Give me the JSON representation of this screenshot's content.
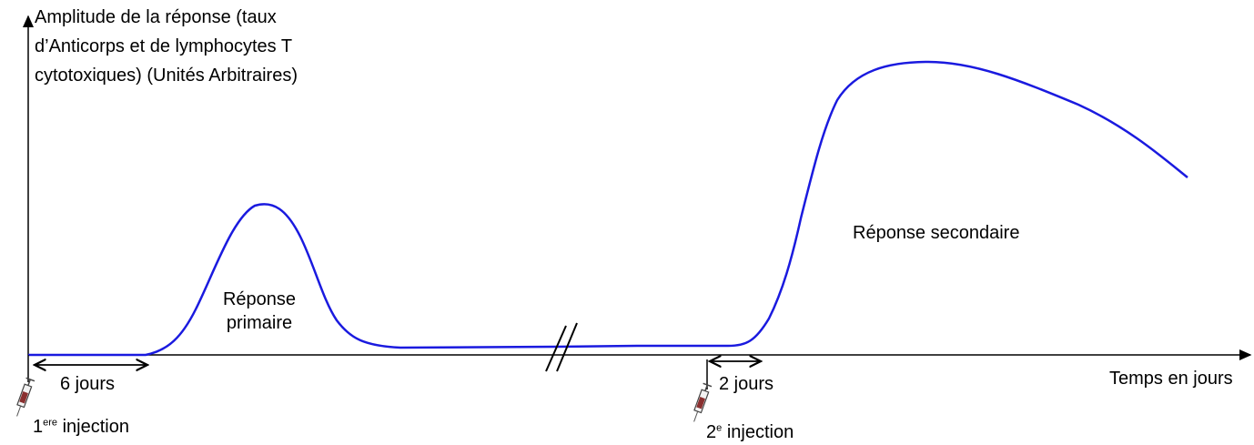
{
  "diagram": {
    "y_axis_label": "Amplitude de la réponse (taux d’Anticorps et de lymphocytes T cytotoxiques) (Unités Arbitraires)",
    "x_axis_label": "Temps en jours",
    "primary_response_label_line1": "Réponse",
    "primary_response_label_line2": "primaire",
    "secondary_response_label": "Réponse secondaire",
    "interval_first": "6 jours",
    "interval_second": "2 jours",
    "injection1": {
      "number": "1",
      "superscript": "ere",
      "text": "injection"
    },
    "injection2": {
      "number": "2",
      "superscript": "e",
      "text": "injection"
    },
    "curve_color": "#1a1adf",
    "icons": [
      "syringe-icon",
      "axis-break-icon"
    ]
  }
}
